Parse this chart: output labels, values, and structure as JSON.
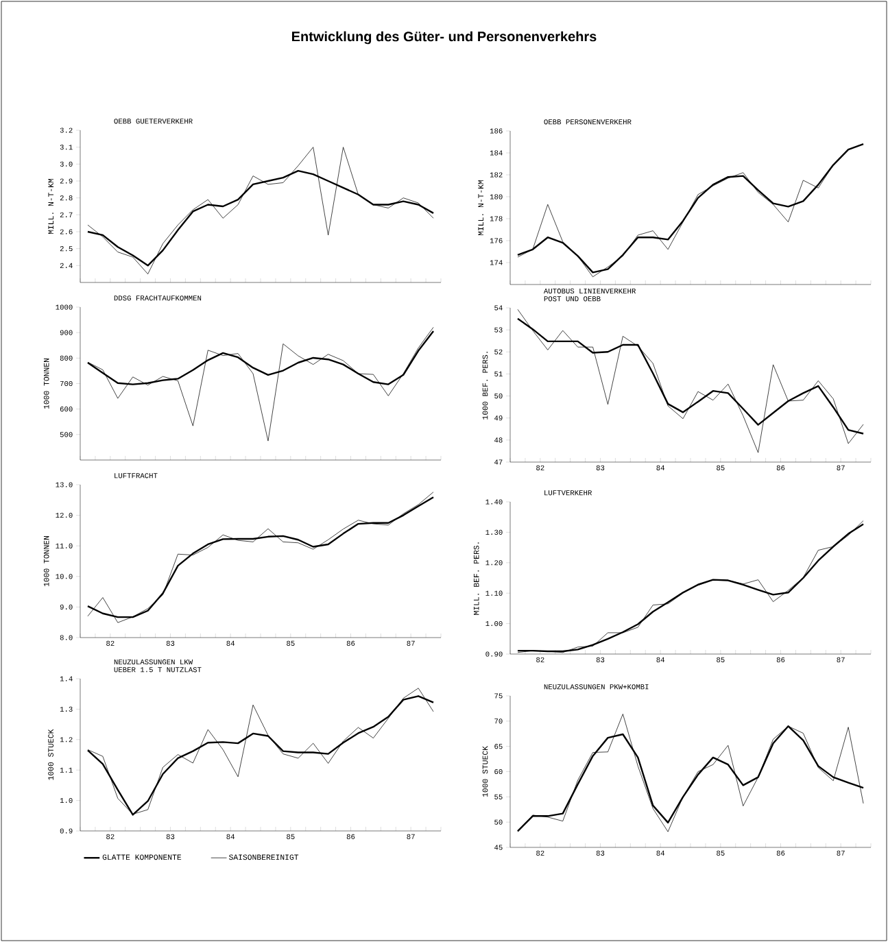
{
  "chart_data": [
    {
      "type": "line",
      "title": "OEBB GUETERVERKEHR",
      "ylabel": "MILL. N-T-KM",
      "annotations": [
        "Entwicklung des Güter- und Personenverkehrs"
      ],
      "categories": [
        null,
        null,
        null,
        null,
        null,
        null,
        null,
        null,
        null,
        null,
        null,
        null,
        null,
        null,
        null,
        null,
        null,
        null,
        null,
        null,
        null,
        null,
        null,
        null
      ],
      "ylim": [
        2.3,
        3.2
      ],
      "yticks": [
        {
          "value": 2.4,
          "label": "2.4"
        },
        {
          "value": 2.5,
          "label": "2.5"
        },
        {
          "value": 2.6,
          "label": "2.6"
        },
        {
          "value": 2.7,
          "label": "2.7"
        },
        {
          "value": 2.8,
          "label": "2.8"
        },
        {
          "value": 2.9,
          "label": "2.9"
        },
        {
          "value": 3.0,
          "label": "3.0"
        },
        {
          "value": 3.1,
          "label": "3.1"
        },
        {
          "value": 3.2,
          "label": "3.2"
        }
      ],
      "grid": false,
      "marker": "none",
      "line_style": "solid",
      "series": [
        {
          "color": "#000000",
          "values": [
            2.6,
            2.58,
            2.51,
            2.46,
            2.4,
            2.49,
            2.61,
            2.72,
            2.76,
            2.75,
            2.79,
            2.88,
            2.9,
            2.92,
            2.96,
            2.94,
            2.9,
            2.86,
            2.82,
            2.76,
            2.76,
            2.78,
            2.76,
            2.71
          ]
        },
        {
          "color": "#000000",
          "values": [
            2.64,
            2.57,
            2.48,
            2.45,
            2.35,
            2.53,
            2.64,
            2.73,
            2.79,
            2.68,
            2.76,
            2.93,
            2.88,
            2.89,
            2.99,
            3.1,
            2.58,
            3.1,
            2.82,
            2.76,
            2.74,
            2.8,
            2.77,
            2.68
          ]
        }
      ]
    },
    {
      "type": "line",
      "title": "OEBB PERSONENVERKEHR",
      "ylabel": "MILL. N-T-KM",
      "categories": [
        null,
        null,
        null,
        null,
        null,
        null,
        null,
        null,
        null,
        null,
        null,
        null,
        null,
        null,
        null,
        null,
        null,
        null,
        null,
        null,
        null,
        null,
        null,
        null
      ],
      "ylim": [
        172,
        186
      ],
      "yticks": [
        174,
        176,
        178,
        180,
        182,
        184,
        186
      ],
      "grid": false,
      "marker": "none",
      "line_style": "solid",
      "series": [
        {
          "color": "#000000",
          "values": [
            174.7,
            175.2,
            176.3,
            175.8,
            174.6,
            173.1,
            173.4,
            174.7,
            176.3,
            176.3,
            176.1,
            177.8,
            179.9,
            181.1,
            181.8,
            181.9,
            180.6,
            179.4,
            179.1,
            179.6,
            181.1,
            182.9,
            184.3,
            184.8
          ]
        },
        {
          "color": "#000000",
          "values": [
            174.5,
            175.2,
            179.3,
            175.9,
            174.6,
            172.7,
            173.6,
            174.6,
            176.5,
            176.9,
            175.2,
            177.7,
            180.2,
            181.0,
            181.7,
            182.2,
            180.4,
            179.3,
            177.7,
            181.5,
            180.8,
            182.9,
            184.3,
            184.8
          ]
        }
      ]
    },
    {
      "type": "line",
      "title": "DDSG FRACHTAUFKOMMEN",
      "ylabel": "1000 TONNEN",
      "categories": [
        null,
        null,
        null,
        null,
        null,
        null,
        null,
        null,
        null,
        null,
        null,
        null,
        null,
        null,
        null,
        null,
        null,
        null,
        null,
        null,
        null,
        null,
        null,
        null
      ],
      "ylim": [
        400,
        1000
      ],
      "yticks": [
        500,
        600,
        700,
        800,
        900,
        1000
      ],
      "grid": false,
      "marker": "none",
      "line_style": "solid",
      "series": [
        {
          "color": "#000000",
          "values": [
            782,
            742,
            702,
            697,
            702,
            713,
            719,
            753,
            792,
            820,
            803,
            762,
            734,
            751,
            782,
            801,
            795,
            775,
            739,
            706,
            697,
            734,
            829,
            906
          ]
        },
        {
          "color": "#000000",
          "values": [
            784,
            754,
            642,
            726,
            694,
            728,
            711,
            534,
            831,
            810,
            818,
            739,
            475,
            856,
            809,
            775,
            815,
            790,
            739,
            736,
            652,
            739,
            840,
            921
          ]
        }
      ]
    },
    {
      "type": "line",
      "title": "AUTOBUS LINIENVERKEHR",
      "subtitle": "POST UND OEBB",
      "ylabel": "1000 BEF. PERS.",
      "x": [
        81.625,
        81.875,
        82.125,
        82.375,
        82.625,
        82.875,
        83.125,
        83.375,
        83.625,
        83.875,
        84.125,
        84.375,
        84.625,
        84.875,
        85.125,
        85.375,
        85.625,
        85.875,
        86.125,
        86.375,
        86.625,
        86.875,
        87.125,
        87.375
      ],
      "xlim": [
        81.5,
        87.5
      ],
      "xticks": [
        {
          "value": 81.5,
          "label": null
        },
        {
          "value": 81.75,
          "label": null
        },
        82,
        {
          "value": 82.25,
          "label": null
        },
        {
          "value": 82.5,
          "label": null
        },
        {
          "value": 82.75,
          "label": null
        },
        83,
        {
          "value": 83.25,
          "label": null
        },
        {
          "value": 83.5,
          "label": null
        },
        {
          "value": 83.75,
          "label": null
        },
        84,
        {
          "value": 84.25,
          "label": null
        },
        {
          "value": 84.5,
          "label": null
        },
        {
          "value": 84.75,
          "label": null
        },
        85,
        {
          "value": 85.25,
          "label": null
        },
        {
          "value": 85.5,
          "label": null
        },
        {
          "value": 85.75,
          "label": null
        },
        86,
        {
          "value": 86.25,
          "label": null
        },
        {
          "value": 86.5,
          "label": null
        },
        {
          "value": 86.75,
          "label": null
        },
        87,
        {
          "value": 87.25,
          "label": null
        },
        {
          "value": 87.5,
          "label": null
        }
      ],
      "ylim": [
        47,
        54
      ],
      "yticks": [
        47,
        48,
        49,
        50,
        51,
        52,
        53,
        54
      ],
      "grid": false,
      "marker": "none",
      "line_style": "solid",
      "series": [
        {
          "color": "#000000",
          "values": [
            53.51,
            53.03,
            52.48,
            52.48,
            52.48,
            51.96,
            52.0,
            52.32,
            52.32,
            51.03,
            49.64,
            49.26,
            49.74,
            50.23,
            50.13,
            49.42,
            48.69,
            49.23,
            49.77,
            50.13,
            50.45,
            49.49,
            48.46,
            48.29
          ]
        },
        {
          "color": "#000000",
          "values": [
            53.93,
            52.97,
            52.09,
            52.97,
            52.22,
            52.22,
            49.62,
            52.71,
            52.26,
            51.48,
            49.55,
            48.97,
            50.2,
            49.81,
            50.54,
            49.1,
            47.43,
            51.42,
            49.77,
            49.81,
            50.69,
            49.87,
            47.84,
            48.71
          ]
        }
      ]
    },
    {
      "type": "line",
      "title": "LUFTFRACHT",
      "ylabel": "1000 TONNEN",
      "x": [
        81.625,
        81.875,
        82.125,
        82.375,
        82.625,
        82.875,
        83.125,
        83.375,
        83.625,
        83.875,
        84.125,
        84.375,
        84.625,
        84.875,
        85.125,
        85.375,
        85.625,
        85.875,
        86.125,
        86.375,
        86.625,
        86.875,
        87.125,
        87.375
      ],
      "xlim": [
        81.5,
        87.5
      ],
      "xticks": [
        {
          "value": 81.5,
          "label": null
        },
        {
          "value": 81.75,
          "label": null
        },
        82,
        {
          "value": 82.25,
          "label": null
        },
        {
          "value": 82.5,
          "label": null
        },
        {
          "value": 82.75,
          "label": null
        },
        83,
        {
          "value": 83.25,
          "label": null
        },
        {
          "value": 83.5,
          "label": null
        },
        {
          "value": 83.75,
          "label": null
        },
        84,
        {
          "value": 84.25,
          "label": null
        },
        {
          "value": 84.5,
          "label": null
        },
        {
          "value": 84.75,
          "label": null
        },
        85,
        {
          "value": 85.25,
          "label": null
        },
        {
          "value": 85.5,
          "label": null
        },
        {
          "value": 85.75,
          "label": null
        },
        86,
        {
          "value": 86.25,
          "label": null
        },
        {
          "value": 86.5,
          "label": null
        },
        {
          "value": 86.75,
          "label": null
        },
        87,
        {
          "value": 87.25,
          "label": null
        },
        {
          "value": 87.5,
          "label": null
        }
      ],
      "ylim": [
        8,
        13
      ],
      "yticks": [
        {
          "value": 8,
          "label": "8.0"
        },
        {
          "value": 9,
          "label": "9.0"
        },
        {
          "value": 10,
          "label": "10.0"
        },
        {
          "value": 11,
          "label": "11.0"
        },
        {
          "value": 12,
          "label": "12.0"
        },
        {
          "value": 13,
          "label": "13.0"
        }
      ],
      "grid": false,
      "marker": "none",
      "line_style": "solid",
      "series": [
        {
          "color": "#000000",
          "values": [
            9.03,
            8.79,
            8.67,
            8.67,
            8.88,
            9.45,
            10.35,
            10.75,
            11.05,
            11.22,
            11.23,
            11.23,
            11.3,
            11.32,
            11.2,
            10.97,
            11.05,
            11.4,
            11.72,
            11.75,
            11.75,
            12.0,
            12.3,
            12.59
          ]
        },
        {
          "color": "#000000",
          "values": [
            8.7,
            9.31,
            8.49,
            8.68,
            8.95,
            9.4,
            10.73,
            10.7,
            10.95,
            11.36,
            11.18,
            11.13,
            11.56,
            11.13,
            11.1,
            10.89,
            11.2,
            11.55,
            11.84,
            11.72,
            11.68,
            12.05,
            12.35,
            12.76
          ]
        }
      ]
    },
    {
      "type": "line",
      "title": "LUFTVERKEHR",
      "ylabel": "MILL. BEF. PERS.",
      "x": [
        81.625,
        81.875,
        82.125,
        82.375,
        82.625,
        82.875,
        83.125,
        83.375,
        83.625,
        83.875,
        84.125,
        84.375,
        84.625,
        84.875,
        85.125,
        85.375,
        85.625,
        85.875,
        86.125,
        86.375,
        86.625,
        86.875,
        87.125,
        87.375
      ],
      "xlim": [
        81.5,
        87.5
      ],
      "xticks": [
        {
          "value": 81.5,
          "label": null
        },
        {
          "value": 81.75,
          "label": null
        },
        82,
        {
          "value": 82.25,
          "label": null
        },
        {
          "value": 82.5,
          "label": null
        },
        {
          "value": 82.75,
          "label": null
        },
        83,
        {
          "value": 83.25,
          "label": null
        },
        {
          "value": 83.5,
          "label": null
        },
        {
          "value": 83.75,
          "label": null
        },
        84,
        {
          "value": 84.25,
          "label": null
        },
        {
          "value": 84.5,
          "label": null
        },
        {
          "value": 84.75,
          "label": null
        },
        85,
        {
          "value": 85.25,
          "label": null
        },
        {
          "value": 85.5,
          "label": null
        },
        {
          "value": 85.75,
          "label": null
        },
        86,
        {
          "value": 86.25,
          "label": null
        },
        {
          "value": 86.5,
          "label": null
        },
        {
          "value": 86.75,
          "label": null
        },
        87,
        {
          "value": 87.25,
          "label": null
        },
        {
          "value": 87.5,
          "label": null
        }
      ],
      "ylim": [
        0.9,
        1.4
      ],
      "yticks": [
        {
          "value": 0.9,
          "label": "0.90"
        },
        {
          "value": 1.0,
          "label": "1.00"
        },
        {
          "value": 1.1,
          "label": "1.10"
        },
        {
          "value": 1.2,
          "label": "1.20"
        },
        {
          "value": 1.3,
          "label": "1.30"
        },
        {
          "value": 1.4,
          "label": "1.40"
        }
      ],
      "grid": false,
      "marker": "none",
      "line_style": "solid",
      "series": [
        {
          "color": "#000000",
          "values": [
            0.911,
            0.911,
            0.909,
            0.909,
            0.915,
            0.93,
            0.95,
            0.972,
            0.998,
            1.039,
            1.07,
            1.102,
            1.128,
            1.144,
            1.142,
            1.128,
            1.111,
            1.095,
            1.102,
            1.15,
            1.207,
            1.253,
            1.295,
            1.327
          ]
        },
        {
          "color": "#000000",
          "values": [
            0.905,
            0.911,
            0.909,
            0.905,
            0.923,
            0.926,
            0.97,
            0.97,
            0.988,
            1.061,
            1.065,
            1.1,
            1.126,
            1.144,
            1.142,
            1.13,
            1.144,
            1.072,
            1.109,
            1.151,
            1.241,
            1.253,
            1.29,
            1.338
          ]
        }
      ]
    },
    {
      "type": "line",
      "title": "NEUZULASSUNGEN LKW",
      "subtitle": "UEBER 1.5 T NUTZLAST",
      "ylabel": "1000 STUECK",
      "legend": "bottom",
      "x": [
        81.625,
        81.875,
        82.125,
        82.375,
        82.625,
        82.875,
        83.125,
        83.375,
        83.625,
        83.875,
        84.125,
        84.375,
        84.625,
        84.875,
        85.125,
        85.375,
        85.625,
        85.875,
        86.125,
        86.375,
        86.625,
        86.875,
        87.125,
        87.375
      ],
      "xlim": [
        81.5,
        87.5
      ],
      "xticks": [
        {
          "value": 81.5,
          "label": null
        },
        {
          "value": 81.75,
          "label": null
        },
        82,
        {
          "value": 82.25,
          "label": null
        },
        {
          "value": 82.5,
          "label": null
        },
        {
          "value": 82.75,
          "label": null
        },
        83,
        {
          "value": 83.25,
          "label": null
        },
        {
          "value": 83.5,
          "label": null
        },
        {
          "value": 83.75,
          "label": null
        },
        84,
        {
          "value": 84.25,
          "label": null
        },
        {
          "value": 84.5,
          "label": null
        },
        {
          "value": 84.75,
          "label": null
        },
        85,
        {
          "value": 85.25,
          "label": null
        },
        {
          "value": 85.5,
          "label": null
        },
        {
          "value": 85.75,
          "label": null
        },
        86,
        {
          "value": 86.25,
          "label": null
        },
        {
          "value": 86.5,
          "label": null
        },
        {
          "value": 86.75,
          "label": null
        },
        87,
        {
          "value": 87.25,
          "label": null
        },
        {
          "value": 87.5,
          "label": null
        }
      ],
      "ylim": [
        0.9,
        1.4
      ],
      "yticks": [
        {
          "value": 0.9,
          "label": "0.9"
        },
        {
          "value": 1.0,
          "label": "1.0"
        },
        {
          "value": 1.1,
          "label": "1.1"
        },
        {
          "value": 1.2,
          "label": "1.2"
        },
        {
          "value": 1.3,
          "label": "1.3"
        },
        {
          "value": 1.4,
          "label": "1.4"
        }
      ],
      "grid": false,
      "marker": "none",
      "line_style": "solid",
      "series": [
        {
          "name": "GLATTE KOMPONENTE",
          "color": "#000000",
          "values": [
            1.165,
            1.12,
            1.035,
            0.953,
            0.998,
            1.087,
            1.139,
            1.162,
            1.19,
            1.192,
            1.188,
            1.22,
            1.212,
            1.162,
            1.158,
            1.158,
            1.153,
            1.19,
            1.221,
            1.242,
            1.275,
            1.331,
            1.343,
            1.322
          ]
        },
        {
          "name": "SAISONBEREINIGT",
          "color": "#000000",
          "values": [
            1.167,
            1.145,
            1.007,
            0.955,
            0.97,
            1.109,
            1.151,
            1.123,
            1.233,
            1.167,
            1.078,
            1.314,
            1.214,
            1.153,
            1.139,
            1.188,
            1.122,
            1.195,
            1.24,
            1.205,
            1.27,
            1.336,
            1.369,
            1.292
          ]
        }
      ]
    },
    {
      "type": "line",
      "title": "NEUZULASSUNGEN PKW+KOMBI",
      "ylabel": "1000 STUECK",
      "x": [
        81.625,
        81.875,
        82.125,
        82.375,
        82.625,
        82.875,
        83.125,
        83.375,
        83.625,
        83.875,
        84.125,
        84.375,
        84.625,
        84.875,
        85.125,
        85.375,
        85.625,
        85.875,
        86.125,
        86.375,
        86.625,
        86.875,
        87.125,
        87.375
      ],
      "xlim": [
        81.5,
        87.5
      ],
      "xticks": [
        {
          "value": 81.5,
          "label": null
        },
        {
          "value": 81.75,
          "label": null
        },
        82,
        {
          "value": 82.25,
          "label": null
        },
        {
          "value": 82.5,
          "label": null
        },
        {
          "value": 82.75,
          "label": null
        },
        83,
        {
          "value": 83.25,
          "label": null
        },
        {
          "value": 83.5,
          "label": null
        },
        {
          "value": 83.75,
          "label": null
        },
        84,
        {
          "value": 84.25,
          "label": null
        },
        {
          "value": 84.5,
          "label": null
        },
        {
          "value": 84.75,
          "label": null
        },
        85,
        {
          "value": 85.25,
          "label": null
        },
        {
          "value": 85.5,
          "label": null
        },
        {
          "value": 85.75,
          "label": null
        },
        86,
        {
          "value": 86.25,
          "label": null
        },
        {
          "value": 86.5,
          "label": null
        },
        {
          "value": 86.75,
          "label": null
        },
        87,
        {
          "value": 87.25,
          "label": null
        },
        {
          "value": 87.5,
          "label": null
        }
      ],
      "ylim": [
        45,
        75
      ],
      "yticks": [
        45,
        50,
        55,
        60,
        65,
        70,
        75
      ],
      "grid": false,
      "marker": "none",
      "line_style": "solid",
      "series": [
        {
          "color": "#000000",
          "values": [
            48.2,
            51.2,
            51.2,
            51.7,
            57.5,
            63.1,
            66.7,
            67.4,
            62.8,
            53.3,
            49.9,
            55.0,
            59.4,
            62.8,
            61.4,
            57.3,
            58.9,
            65.6,
            69.0,
            66.2,
            61.1,
            58.9,
            57.8,
            56.8
          ]
        },
        {
          "color": "#000000",
          "values": [
            48.1,
            51.4,
            51.0,
            50.2,
            58.3,
            63.8,
            63.9,
            71.4,
            61.1,
            52.7,
            48.1,
            55.0,
            60.0,
            61.4,
            65.2,
            53.2,
            58.9,
            66.4,
            69.0,
            67.6,
            60.8,
            58.2,
            68.8,
            53.7
          ]
        }
      ]
    }
  ]
}
